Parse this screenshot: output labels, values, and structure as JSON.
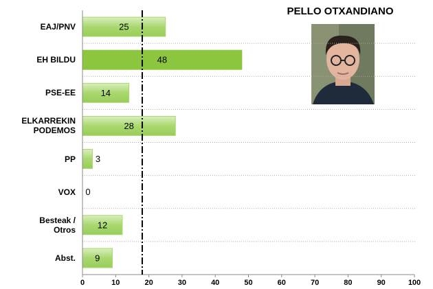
{
  "chart_data": {
    "type": "hbar",
    "title": "PELLO OTXANDIANO",
    "categories": [
      "EAJ/PNV",
      "EH BILDU",
      "PSE-EE",
      "ELKARREKIN\nPODEMOS",
      "PP",
      "VOX",
      "Besteak /\nOtros",
      "Abst."
    ],
    "values": [
      25,
      48,
      14,
      28,
      3,
      0,
      12,
      9
    ],
    "colors": [
      "#a9d86e",
      "#8cc63f",
      "#a9d86e",
      "#a9d86e",
      "#a9d86e",
      "#a9d86e",
      "#a9d86e",
      "#a9d86e"
    ],
    "xlim": [
      0,
      100
    ],
    "xticks": [
      0,
      10,
      20,
      30,
      40,
      50,
      60,
      70,
      80,
      90,
      100
    ],
    "reference_line": 18,
    "grid": true
  }
}
